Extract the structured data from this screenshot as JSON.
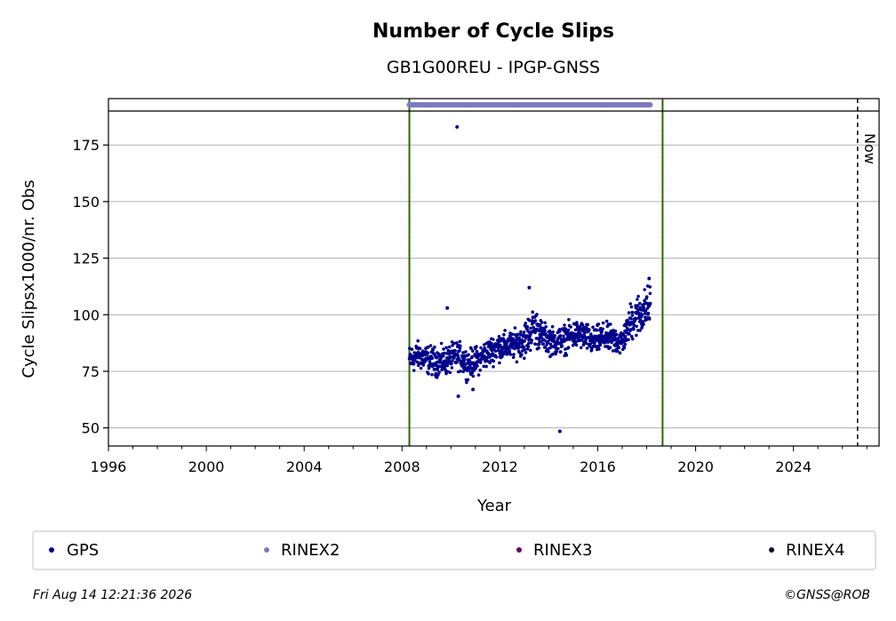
{
  "chart_data": {
    "type": "scatter",
    "title": "Number of Cycle Slips",
    "subtitle": "GB1G00REU - IPGP-GNSS",
    "xlabel": "Year",
    "ylabel": "Cycle Slipsx1000/nr. Obs",
    "xlim": [
      1996,
      2027.5
    ],
    "ylim": [
      42,
      190
    ],
    "xticks": [
      1996,
      2000,
      2004,
      2008,
      2012,
      2016,
      2020,
      2024
    ],
    "xtick_labels": [
      "1996",
      "2000",
      "2004",
      "2008",
      "2012",
      "2016",
      "2020",
      "2024"
    ],
    "yticks": [
      50,
      75,
      100,
      125,
      150,
      175
    ],
    "ytick_labels": [
      "50",
      "75",
      "100",
      "125",
      "150",
      "175"
    ],
    "grid": "horizontal",
    "legend_position": "bottom",
    "now_label": "Now",
    "now_year": 2026.62,
    "vertical_lines": [
      2008.3,
      2018.65
    ],
    "series": [
      {
        "name": "GPS",
        "color": "#00008B",
        "trend": [
          [
            2008.3,
            80
          ],
          [
            2008.7,
            82
          ],
          [
            2009.1,
            80
          ],
          [
            2009.5,
            79
          ],
          [
            2009.9,
            80
          ],
          [
            2010.3,
            82
          ],
          [
            2010.7,
            78
          ],
          [
            2011.1,
            80
          ],
          [
            2011.5,
            83
          ],
          [
            2011.9,
            86
          ],
          [
            2012.3,
            86
          ],
          [
            2012.7,
            87
          ],
          [
            2013.1,
            90
          ],
          [
            2013.4,
            95
          ],
          [
            2013.8,
            90
          ],
          [
            2014.2,
            88
          ],
          [
            2014.6,
            89
          ],
          [
            2015.0,
            91
          ],
          [
            2015.4,
            91
          ],
          [
            2015.8,
            88
          ],
          [
            2016.2,
            90
          ],
          [
            2016.6,
            89
          ],
          [
            2017.0,
            88
          ],
          [
            2017.4,
            98
          ],
          [
            2017.8,
            101
          ],
          [
            2018.15,
            104
          ]
        ],
        "outliers": [
          [
            2010.25,
            183
          ],
          [
            2009.85,
            103
          ],
          [
            2010.3,
            64
          ],
          [
            2014.45,
            48.5
          ],
          [
            2010.9,
            67
          ],
          [
            2013.2,
            112
          ],
          [
            2018.1,
            116
          ]
        ]
      },
      {
        "name": "RINEX2",
        "color": "#7B7BBF",
        "y": 192,
        "x_start": 2008.3,
        "x_end": 2018.15
      },
      {
        "name": "RINEX3",
        "color": "#6A006A"
      },
      {
        "name": "RINEX4",
        "color": "#1A0020"
      }
    ]
  },
  "footer": {
    "timestamp": "Fri Aug 14 12:21:36 2026",
    "credit": "©GNSS@ROB"
  }
}
